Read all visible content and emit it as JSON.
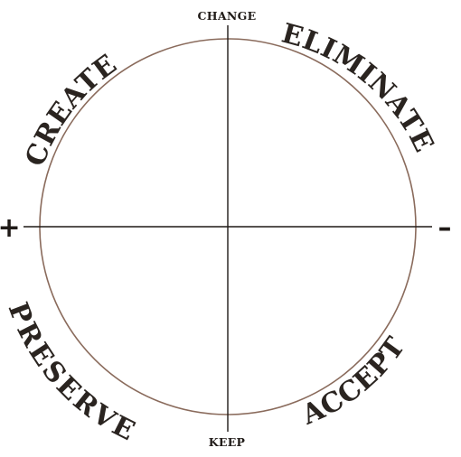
{
  "diagram": {
    "axis_top": "CHANGE",
    "axis_bottom": "KEEP",
    "sign_left": "+",
    "sign_right": "–",
    "quadrants": {
      "top_left": "CREATE",
      "top_right": "ELIMINATE",
      "bottom_left": "PRESERVE",
      "bottom_right": "ACCEPT"
    },
    "colors": {
      "circle": "#8a6b5c",
      "axes": "#1f1a17",
      "text": "#2a2420"
    }
  }
}
